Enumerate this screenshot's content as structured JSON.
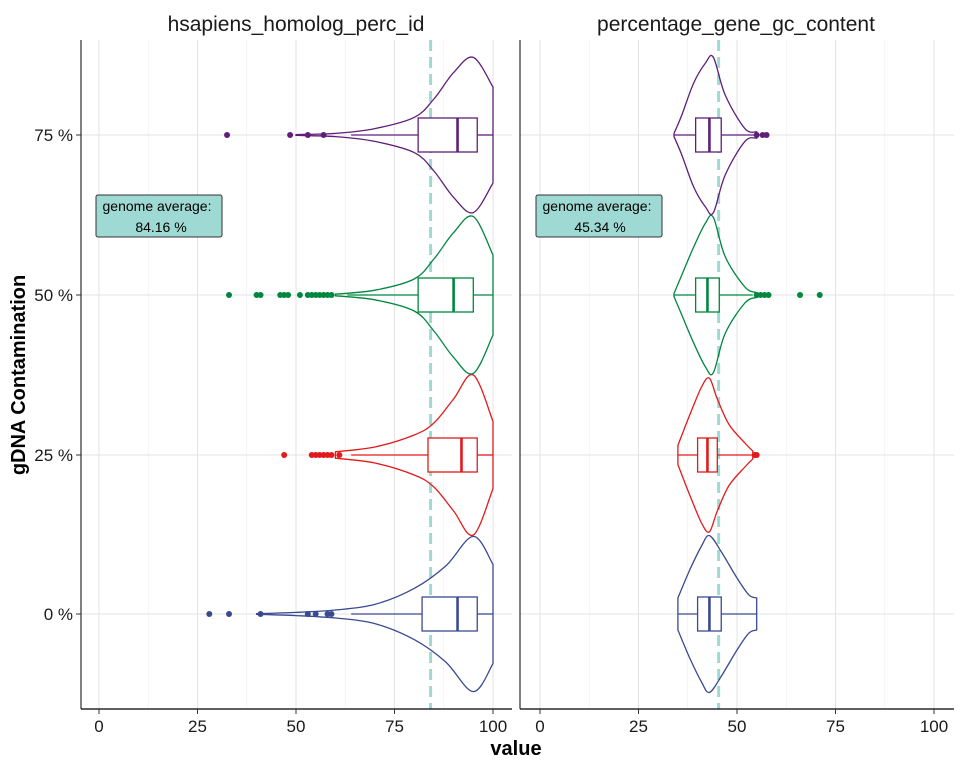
{
  "chart_data": {
    "type": "violin",
    "xlabel": "value",
    "ylabel": "gDNA Contamination",
    "xlim": [
      0,
      100
    ],
    "x_ticks": [
      "0",
      "25",
      "50",
      "75",
      "100"
    ],
    "y_categories": [
      "0 %",
      "25 %",
      "50 %",
      "75 %"
    ],
    "grid": true,
    "legend": "none",
    "category_colors": {
      "0 %": "#3a4a91",
      "25 %": "#e31a1c",
      "50 %": "#00873f",
      "75 %": "#5e1f7a"
    },
    "reference_line_color": "#9fd9d4",
    "panels": [
      {
        "title": "hsapiens_homolog_perc_id",
        "reference_value": 84.16,
        "annotation": {
          "line1": "genome average:",
          "line2": "84.16 %"
        },
        "groups": [
          {
            "category": "0 %",
            "box": {
              "q1": 82,
              "median": 91,
              "q3": 96,
              "whisker_low": 64,
              "whisker_high": 100
            },
            "outliers": [
              28,
              33,
              41,
              53,
              55,
              58,
              59
            ],
            "density": [
              [
                40,
                0.004
              ],
              [
                50,
                0.02
              ],
              [
                60,
                0.05
              ],
              [
                70,
                0.12
              ],
              [
                80,
                0.32
              ],
              [
                88,
                0.6
              ],
              [
                95,
                0.97
              ],
              [
                100,
                0.62
              ]
            ]
          },
          {
            "category": "25 %",
            "box": {
              "q1": 83.5,
              "median": 92,
              "q3": 96,
              "whisker_low": 64,
              "whisker_high": 100
            },
            "outliers": [
              47,
              54,
              55,
              56,
              57,
              58,
              59,
              61
            ],
            "density": [
              [
                60,
                0.04
              ],
              [
                70,
                0.1
              ],
              [
                80,
                0.25
              ],
              [
                85,
                0.4
              ],
              [
                90,
                0.7
              ],
              [
                95,
                1.0
              ],
              [
                100,
                0.42
              ]
            ]
          },
          {
            "category": "50 %",
            "box": {
              "q1": 81,
              "median": 90,
              "q3": 95,
              "whisker_low": 63,
              "whisker_high": 100
            },
            "outliers": [
              33,
              40,
              41,
              46,
              47,
              48,
              51,
              53,
              54,
              55,
              56,
              57,
              58,
              59
            ],
            "density": [
              [
                60,
                0.01
              ],
              [
                70,
                0.06
              ],
              [
                80,
                0.2
              ],
              [
                85,
                0.45
              ],
              [
                90,
                0.78
              ],
              [
                95,
                0.98
              ],
              [
                100,
                0.5
              ]
            ]
          },
          {
            "category": "75 %",
            "box": {
              "q1": 81,
              "median": 91,
              "q3": 96,
              "whisker_low": 64,
              "whisker_high": 100
            },
            "outliers": [
              32.5,
              48.5,
              53,
              57
            ],
            "density": [
              [
                50,
                0.005
              ],
              [
                60,
                0.02
              ],
              [
                70,
                0.08
              ],
              [
                80,
                0.22
              ],
              [
                85,
                0.45
              ],
              [
                90,
                0.78
              ],
              [
                95,
                0.97
              ],
              [
                100,
                0.6
              ]
            ]
          }
        ]
      },
      {
        "title": "percentage_gene_gc_content",
        "reference_value": 45.34,
        "annotation": {
          "line1": "genome average:",
          "line2": "45.34 %"
        },
        "groups": [
          {
            "category": "0 %",
            "box": {
              "q1": 40,
              "median": 43,
              "q3": 46,
              "whisker_low": 35,
              "whisker_high": 55
            },
            "outliers": [],
            "density": [
              [
                35,
                0.2
              ],
              [
                38,
                0.55
              ],
              [
                41,
                0.85
              ],
              [
                43,
                0.98
              ],
              [
                46,
                0.78
              ],
              [
                50,
                0.45
              ],
              [
                53,
                0.24
              ],
              [
                55,
                0.2
              ]
            ]
          },
          {
            "category": "25 %",
            "box": {
              "q1": 40,
              "median": 42.5,
              "q3": 45,
              "whisker_low": 35,
              "whisker_high": 54
            },
            "outliers": [
              54.5,
              55
            ],
            "density": [
              [
                35,
                0.12
              ],
              [
                38,
                0.5
              ],
              [
                41,
                0.85
              ],
              [
                43,
                0.96
              ],
              [
                45,
                0.7
              ],
              [
                48,
                0.38
              ],
              [
                52,
                0.15
              ],
              [
                54,
                0.05
              ]
            ]
          },
          {
            "category": "50 %",
            "box": {
              "q1": 39.5,
              "median": 42.5,
              "q3": 45.5,
              "whisker_low": 34,
              "whisker_high": 54
            },
            "outliers": [
              55,
              56,
              57,
              58,
              66,
              71
            ],
            "density": [
              [
                34,
                0.02
              ],
              [
                36,
                0.25
              ],
              [
                39,
                0.6
              ],
              [
                42,
                0.9
              ],
              [
                44,
                0.97
              ],
              [
                47,
                0.48
              ],
              [
                52,
                0.1
              ],
              [
                55,
                0.03
              ]
            ]
          },
          {
            "category": "75 %",
            "box": {
              "q1": 39.5,
              "median": 43,
              "q3": 46,
              "whisker_low": 34,
              "whisker_high": 55
            },
            "outliers": [
              55,
              56.5,
              57.5
            ],
            "density": [
              [
                34,
                0.02
              ],
              [
                36,
                0.25
              ],
              [
                39,
                0.65
              ],
              [
                42,
                0.9
              ],
              [
                44,
                0.97
              ],
              [
                47,
                0.5
              ],
              [
                52,
                0.08
              ],
              [
                55,
                0.04
              ]
            ]
          }
        ]
      }
    ]
  }
}
